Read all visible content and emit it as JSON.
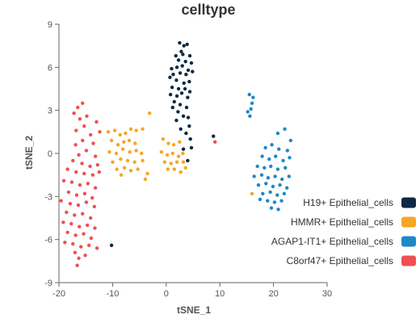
{
  "chart_data": {
    "type": "scatter",
    "title": "celltype",
    "xlabel": "tSNE_1",
    "ylabel": "tSNE_2",
    "xlim": [
      -20,
      30
    ],
    "ylim": [
      -9,
      9
    ],
    "xticks": [
      "-20",
      "-10",
      "0",
      "10",
      "20",
      "30"
    ],
    "yticks": [
      "-9",
      "-6",
      "-3",
      "0",
      "3",
      "6",
      "9"
    ],
    "grid": false,
    "legend_position": "bottom-right",
    "series": [
      {
        "name": "H19+ Epithelial_cells",
        "color": "#0d2a42",
        "points": [
          [
            2.5,
            7.7
          ],
          [
            3.3,
            7.5
          ],
          [
            3.9,
            7.6
          ],
          [
            2.8,
            7.1
          ],
          [
            1.8,
            6.8
          ],
          [
            3.1,
            6.9
          ],
          [
            4.4,
            6.8
          ],
          [
            2.3,
            6.5
          ],
          [
            3.6,
            6.4
          ],
          [
            4.7,
            6.3
          ],
          [
            1.0,
            5.9
          ],
          [
            2.0,
            6.0
          ],
          [
            3.0,
            6.1
          ],
          [
            4.1,
            5.8
          ],
          [
            1.3,
            5.5
          ],
          [
            2.6,
            5.6
          ],
          [
            3.7,
            5.5
          ],
          [
            4.9,
            5.7
          ],
          [
            0.7,
            5.3
          ],
          [
            1.9,
            5.1
          ],
          [
            3.3,
            4.9
          ],
          [
            4.3,
            5.0
          ],
          [
            1.1,
            4.6
          ],
          [
            2.3,
            4.5
          ],
          [
            3.5,
            4.5
          ],
          [
            4.4,
            4.3
          ],
          [
            0.8,
            4.1
          ],
          [
            2.0,
            4.0
          ],
          [
            2.9,
            4.2
          ],
          [
            4.0,
            3.9
          ],
          [
            1.5,
            3.6
          ],
          [
            2.6,
            3.4
          ],
          [
            3.8,
            3.2
          ],
          [
            1.2,
            3.2
          ],
          [
            2.2,
            2.9
          ],
          [
            4.1,
            2.5
          ],
          [
            3.2,
            2.6
          ],
          [
            1.9,
            2.3
          ],
          [
            4.3,
            1.9
          ],
          [
            2.7,
            1.7
          ],
          [
            3.7,
            1.4
          ],
          [
            4.5,
            1.0
          ],
          [
            3.2,
            0.3
          ],
          [
            4.7,
            0.4
          ],
          [
            4.0,
            -0.5
          ],
          [
            8.8,
            1.2
          ],
          [
            -10.2,
            -6.4
          ]
        ]
      },
      {
        "name": "HMMR+ Epithelial_cells",
        "color": "#f5a623",
        "points": [
          [
            -10.8,
            1.5
          ],
          [
            -9.6,
            1.6
          ],
          [
            -8.6,
            1.3
          ],
          [
            -7.6,
            1.4
          ],
          [
            -6.6,
            1.7
          ],
          [
            -5.6,
            1.6
          ],
          [
            -4.4,
            1.7
          ],
          [
            -3.1,
            2.8
          ],
          [
            -10.2,
            0.9
          ],
          [
            -9.0,
            0.6
          ],
          [
            -7.9,
            0.8
          ],
          [
            -6.9,
            0.9
          ],
          [
            -5.8,
            0.7
          ],
          [
            -10.6,
            0.1
          ],
          [
            -9.3,
            0.0
          ],
          [
            -8.1,
            0.3
          ],
          [
            -6.8,
            0.1
          ],
          [
            -5.6,
            0.2
          ],
          [
            -4.6,
            0.0
          ],
          [
            -10.0,
            -0.6
          ],
          [
            -8.5,
            -0.4
          ],
          [
            -7.2,
            -0.5
          ],
          [
            -5.9,
            -0.6
          ],
          [
            -4.4,
            -0.5
          ],
          [
            -9.2,
            -1.1
          ],
          [
            -7.8,
            -1.0
          ],
          [
            -6.6,
            -1.2
          ],
          [
            -5.3,
            -1.1
          ],
          [
            -3.5,
            -1.4
          ],
          [
            -8.4,
            -1.5
          ],
          [
            -3.9,
            -1.8
          ],
          [
            -0.6,
            1.0
          ],
          [
            0.4,
            0.7
          ],
          [
            1.4,
            0.6
          ],
          [
            2.5,
            0.8
          ],
          [
            -0.9,
            0.1
          ],
          [
            0.2,
            -0.1
          ],
          [
            1.2,
            0.0
          ],
          [
            2.3,
            -0.2
          ],
          [
            3.1,
            0.0
          ],
          [
            -0.3,
            -0.6
          ],
          [
            0.9,
            -0.7
          ],
          [
            2.0,
            -0.6
          ],
          [
            3.2,
            -0.6
          ],
          [
            1.5,
            -1.1
          ],
          [
            0.3,
            -1.1
          ],
          [
            2.7,
            -1.3
          ],
          [
            3.6,
            -1.0
          ],
          [
            16.0,
            -2.8
          ]
        ]
      },
      {
        "name": "AGAP1-IT1+ Epithelial_cells",
        "color": "#1e88c8",
        "points": [
          [
            15.5,
            4.1
          ],
          [
            16.2,
            3.9
          ],
          [
            16.0,
            3.5
          ],
          [
            15.8,
            3.1
          ],
          [
            15.2,
            2.9
          ],
          [
            15.6,
            2.6
          ],
          [
            20.8,
            1.4
          ],
          [
            22.1,
            1.7
          ],
          [
            23.2,
            0.9
          ],
          [
            18.5,
            0.4
          ],
          [
            19.7,
            0.6
          ],
          [
            21.0,
            0.3
          ],
          [
            22.6,
            0.2
          ],
          [
            17.9,
            -0.2
          ],
          [
            19.2,
            -0.4
          ],
          [
            20.4,
            -0.2
          ],
          [
            21.8,
            -0.5
          ],
          [
            23.0,
            -0.3
          ],
          [
            17.0,
            -0.9
          ],
          [
            18.3,
            -1.0
          ],
          [
            19.5,
            -0.9
          ],
          [
            20.8,
            -1.1
          ],
          [
            22.2,
            -1.0
          ],
          [
            16.4,
            -1.6
          ],
          [
            17.8,
            -1.5
          ],
          [
            19.0,
            -1.7
          ],
          [
            20.3,
            -1.6
          ],
          [
            21.6,
            -1.8
          ],
          [
            22.9,
            -1.6
          ],
          [
            17.2,
            -2.2
          ],
          [
            18.6,
            -2.1
          ],
          [
            19.9,
            -2.3
          ],
          [
            21.2,
            -2.2
          ],
          [
            22.5,
            -2.4
          ],
          [
            18.0,
            -2.8
          ],
          [
            19.4,
            -2.7
          ],
          [
            20.7,
            -2.9
          ],
          [
            22.0,
            -2.8
          ],
          [
            17.5,
            -3.2
          ],
          [
            18.9,
            -3.3
          ],
          [
            20.2,
            -3.4
          ],
          [
            21.5,
            -3.3
          ],
          [
            19.6,
            -3.8
          ],
          [
            20.9,
            -3.9
          ]
        ]
      },
      {
        "name": "C8orf47+ Epithelial_cells",
        "color": "#ef5050",
        "points": [
          [
            -16.5,
            3.2
          ],
          [
            -15.6,
            3.5
          ],
          [
            -17.2,
            2.8
          ],
          [
            -14.8,
            2.6
          ],
          [
            -16.1,
            2.4
          ],
          [
            -13.0,
            2.2
          ],
          [
            -15.3,
            1.9
          ],
          [
            -16.8,
            1.6
          ],
          [
            -14.1,
            1.3
          ],
          [
            -12.4,
            1.5
          ],
          [
            -15.6,
            0.9
          ],
          [
            -16.9,
            0.6
          ],
          [
            -13.6,
            0.7
          ],
          [
            -14.9,
            0.2
          ],
          [
            -16.3,
            -0.1
          ],
          [
            -13.2,
            -0.2
          ],
          [
            -17.4,
            -0.5
          ],
          [
            -15.7,
            -0.7
          ],
          [
            -14.2,
            -0.9
          ],
          [
            -12.8,
            -0.8
          ],
          [
            -18.4,
            -1.1
          ],
          [
            -16.8,
            -1.3
          ],
          [
            -15.3,
            -1.4
          ],
          [
            -13.7,
            -1.5
          ],
          [
            -12.5,
            -1.3
          ],
          [
            -19.1,
            -1.9
          ],
          [
            -17.6,
            -2.0
          ],
          [
            -16.1,
            -2.2
          ],
          [
            -14.6,
            -2.1
          ],
          [
            -13.2,
            -2.4
          ],
          [
            -18.2,
            -2.7
          ],
          [
            -16.7,
            -2.9
          ],
          [
            -15.2,
            -2.8
          ],
          [
            -13.8,
            -3.1
          ],
          [
            -19.6,
            -3.3
          ],
          [
            -17.9,
            -3.5
          ],
          [
            -16.4,
            -3.6
          ],
          [
            -14.9,
            -3.4
          ],
          [
            -13.4,
            -3.7
          ],
          [
            -18.6,
            -4.1
          ],
          [
            -17.1,
            -4.3
          ],
          [
            -15.6,
            -4.2
          ],
          [
            -14.1,
            -4.5
          ],
          [
            -19.2,
            -4.8
          ],
          [
            -17.7,
            -4.9
          ],
          [
            -16.2,
            -5.1
          ],
          [
            -14.7,
            -5.0
          ],
          [
            -13.3,
            -5.2
          ],
          [
            -18.4,
            -5.5
          ],
          [
            -16.9,
            -5.7
          ],
          [
            -15.4,
            -5.6
          ],
          [
            -14.0,
            -5.9
          ],
          [
            -18.9,
            -6.2
          ],
          [
            -17.4,
            -6.3
          ],
          [
            -15.9,
            -6.5
          ],
          [
            -14.4,
            -6.4
          ],
          [
            -12.9,
            -6.6
          ],
          [
            -17.0,
            -6.9
          ],
          [
            -16.3,
            -7.3
          ],
          [
            -15.1,
            -7.1
          ],
          [
            -16.6,
            -7.8
          ],
          [
            9.1,
            0.8
          ]
        ]
      }
    ]
  }
}
